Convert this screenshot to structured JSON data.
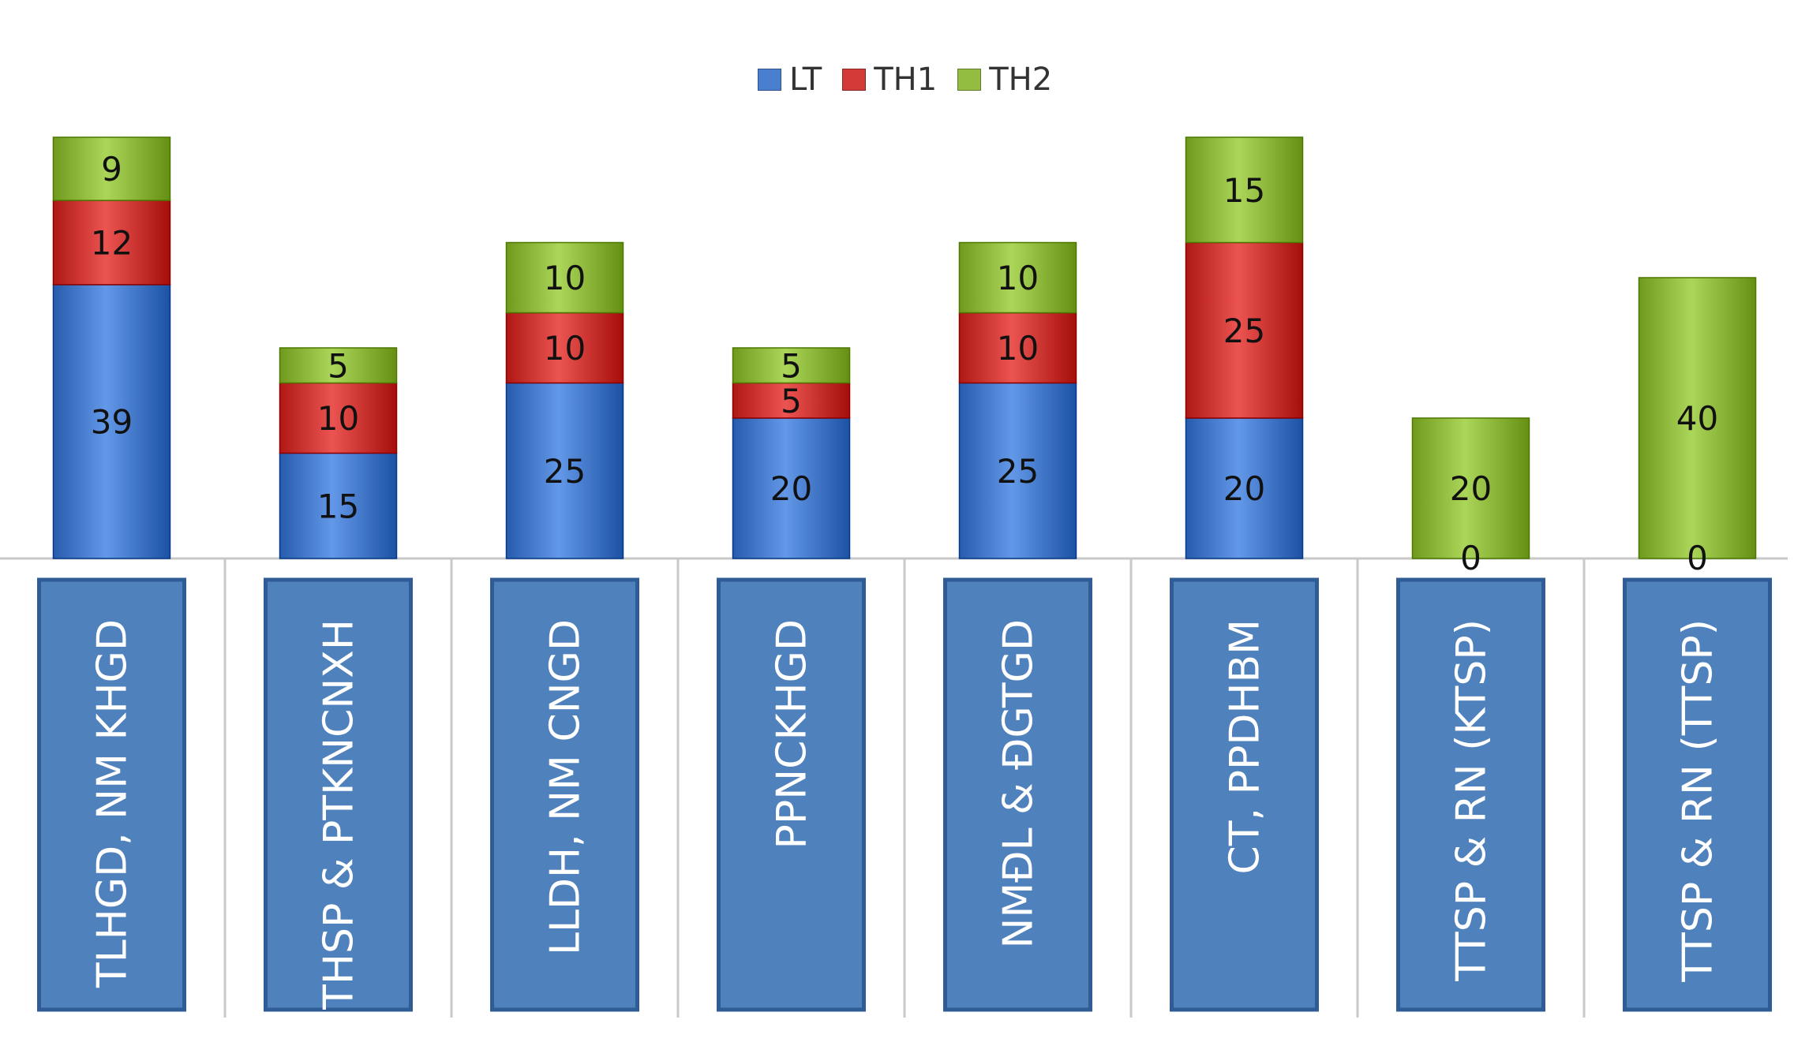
{
  "chart_data": {
    "type": "bar",
    "stacked": true,
    "categories": [
      "TLHGD, NM KHGD",
      "THSP & PTKNCNXH",
      "LLDH, NM CNGD",
      "PPNCKHGD",
      "NMĐL & ĐGTGD",
      "CT, PPDHBM",
      "TTSP & RN (KTSP)",
      "TTSP & RN (TTSP)"
    ],
    "series": [
      {
        "name": "LT",
        "values": [
          39,
          15,
          25,
          20,
          25,
          20,
          0,
          0
        ],
        "color": "#4a7fd0"
      },
      {
        "name": "TH1",
        "values": [
          12,
          10,
          10,
          5,
          10,
          25,
          0,
          0
        ],
        "color": "#d23b38"
      },
      {
        "name": "TH2",
        "values": [
          9,
          5,
          10,
          5,
          10,
          15,
          20,
          40
        ],
        "color": "#92bd40"
      }
    ],
    "data_labels_shown": true,
    "zero_labels": [
      "",
      "",
      "",
      "",
      "",
      "",
      "0",
      "0"
    ],
    "legend_position": "top",
    "category_label_orientation": "vertical",
    "category_label_style": "white text on blue boxes",
    "category_box_color": "#4f81bd",
    "grid": false
  }
}
